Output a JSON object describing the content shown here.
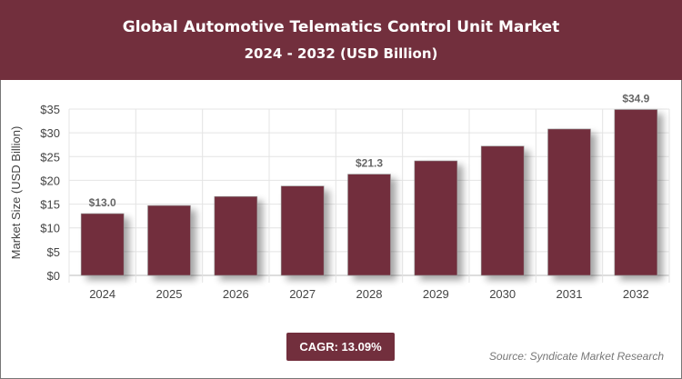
{
  "header": {
    "title": "Global Automotive Telematics Control Unit Market",
    "subtitle": "2024 - 2032 (USD Billion)"
  },
  "chart_data": {
    "type": "bar",
    "categories": [
      "2024",
      "2025",
      "2026",
      "2027",
      "2028",
      "2029",
      "2030",
      "2031",
      "2032"
    ],
    "values": [
      13.0,
      14.7,
      16.6,
      18.8,
      21.3,
      24.1,
      27.2,
      30.8,
      34.9
    ],
    "data_labels": {
      "0": "$13.0",
      "4": "$21.3",
      "8": "$34.9"
    },
    "ylabel": "Market Size (USD Billion)",
    "ylim": [
      0,
      35
    ],
    "yticks": [
      "$0",
      "$5",
      "$10",
      "$15",
      "$20",
      "$25",
      "$30",
      "$35"
    ],
    "grid": true,
    "bar_color": "#722f3d"
  },
  "footer": {
    "cagr": "CAGR: 13.09%",
    "source": "Source: Syndicate Market Research"
  }
}
